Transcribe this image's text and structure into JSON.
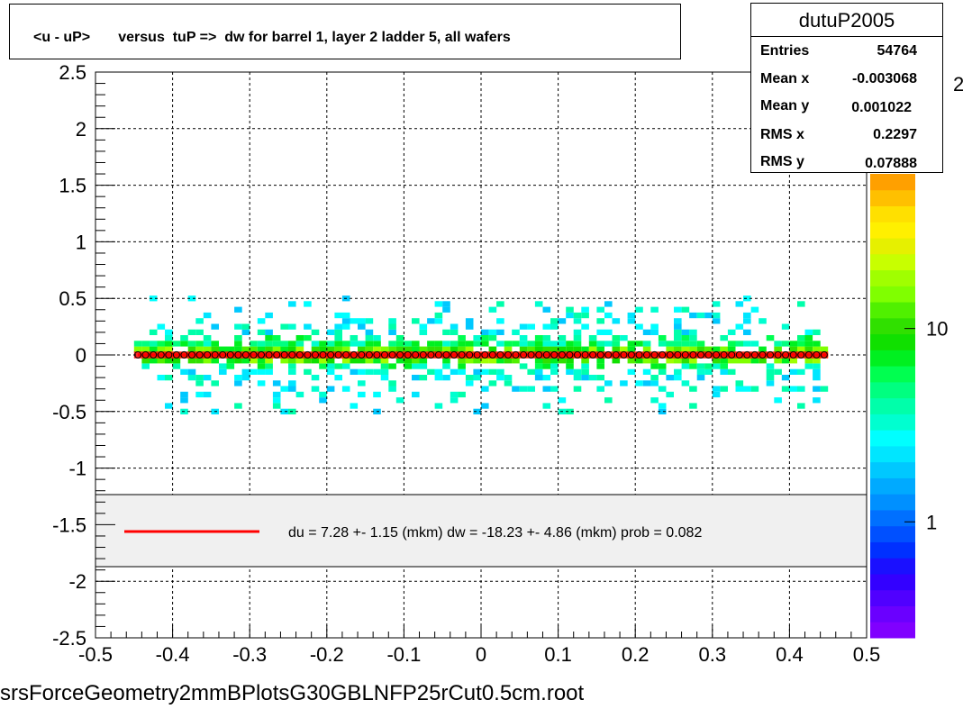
{
  "title": "<u - uP>       versus  tuP =>  dw for barrel 1, layer 2 ladder 5, all wafers",
  "footer": "srsForceGeometry2mmBPlotsG30GBLNFP25rCut0.5cm.root",
  "stats": {
    "name": "dutuP2005",
    "rows": [
      {
        "label": "Entries",
        "value": "54764"
      },
      {
        "label": "Mean x",
        "value": "-0.003068"
      },
      {
        "label": "Mean y",
        "value": "0.001022"
      },
      {
        "label": "RMS x",
        "value": "0.2297"
      },
      {
        "label": "RMS y",
        "value": "0.07888"
      }
    ]
  },
  "colorbar": {
    "labels": [
      {
        "text": "1",
        "value": 1
      },
      {
        "text": "10",
        "value": 10
      }
    ],
    "exponent_label": "2",
    "colors": [
      "#8000ff",
      "#6a00ff",
      "#5000ff",
      "#3300ff",
      "#1a10ff",
      "#0030ff",
      "#0050ff",
      "#0070ff",
      "#0090ff",
      "#00aaff",
      "#00c8ff",
      "#00e6ff",
      "#00ffff",
      "#00ffd0",
      "#00ffaa",
      "#00ff80",
      "#00ff50",
      "#00f020",
      "#10e000",
      "#30e000",
      "#50f000",
      "#80ff00",
      "#a0ff00",
      "#c8ff00",
      "#e6f000",
      "#fff000",
      "#ffe000",
      "#ffc000",
      "#ffa000"
    ]
  },
  "legend": {
    "text": "du =    7.28 +-  1.15 (mkm) dw =  -18.23 +-  4.86 (mkm) prob = 0.082",
    "line_color": "#ff0000"
  },
  "chart_data": {
    "type": "heatmap",
    "title": "<u - uP>       versus  tuP =>  dw for barrel 1, layer 2 ladder 5, all wafers",
    "xlim": [
      -0.5,
      0.5
    ],
    "ylim": [
      -2.5,
      2.5
    ],
    "x_ticks": [
      {
        "v": -0.5,
        "t": "-0.5"
      },
      {
        "v": -0.4,
        "t": "-0.4"
      },
      {
        "v": -0.3,
        "t": "-0.3"
      },
      {
        "v": -0.2,
        "t": "-0.2"
      },
      {
        "v": -0.1,
        "t": "-0.1"
      },
      {
        "v": 0,
        "t": "0"
      },
      {
        "v": 0.1,
        "t": "0.1"
      },
      {
        "v": 0.2,
        "t": "0.2"
      },
      {
        "v": 0.3,
        "t": "0.3"
      },
      {
        "v": 0.4,
        "t": "0.4"
      },
      {
        "v": 0.5,
        "t": "0.5"
      }
    ],
    "y_ticks": [
      {
        "v": 2.5,
        "t": "2.5"
      },
      {
        "v": 2,
        "t": "2"
      },
      {
        "v": 1.5,
        "t": "1.5"
      },
      {
        "v": 1,
        "t": "1"
      },
      {
        "v": 0.5,
        "t": "0.5"
      },
      {
        "v": 0,
        "t": "0"
      },
      {
        "v": -0.5,
        "t": "-0.5"
      },
      {
        "v": -1,
        "t": "-1"
      },
      {
        "v": -1.5,
        "t": "-1.5"
      },
      {
        "v": -2,
        "t": "-2"
      },
      {
        "v": -2.5,
        "t": "-2.5"
      }
    ],
    "grid": true,
    "band": {
      "x_range": [
        -0.45,
        0.45
      ],
      "y_core_halfwidth": 0.03,
      "y_spread": 0.5
    },
    "profile": {
      "x_range": [
        -0.445,
        0.45
      ],
      "step": 0.01,
      "y_mean": 0.001,
      "marker_color": "#000000",
      "line_color": "#ff0000"
    }
  }
}
